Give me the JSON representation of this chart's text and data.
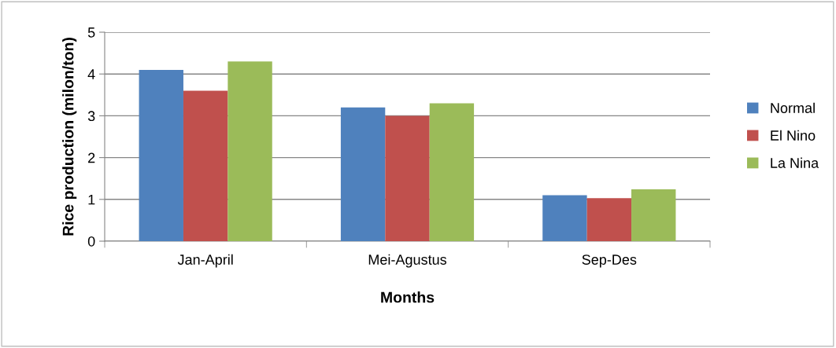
{
  "chart_data": {
    "type": "bar",
    "xlabel": "Months",
    "ylabel": "Rice production (milon/ton)",
    "categories": [
      "Jan-April",
      "Mei-Agustus",
      "Sep-Des"
    ],
    "series": [
      {
        "name": "Normal",
        "color": "#4f81bd",
        "values": [
          4.1,
          3.2,
          1.1
        ]
      },
      {
        "name": "El Nino",
        "color": "#c0504d",
        "values": [
          3.6,
          3.0,
          1.03
        ]
      },
      {
        "name": "La Nina",
        "color": "#9bbb59",
        "values": [
          4.3,
          3.3,
          1.24
        ]
      }
    ],
    "ylim": [
      0,
      5
    ],
    "yticks": [
      0,
      1,
      2,
      3,
      4,
      5
    ],
    "grid": "y",
    "legend": "right"
  }
}
